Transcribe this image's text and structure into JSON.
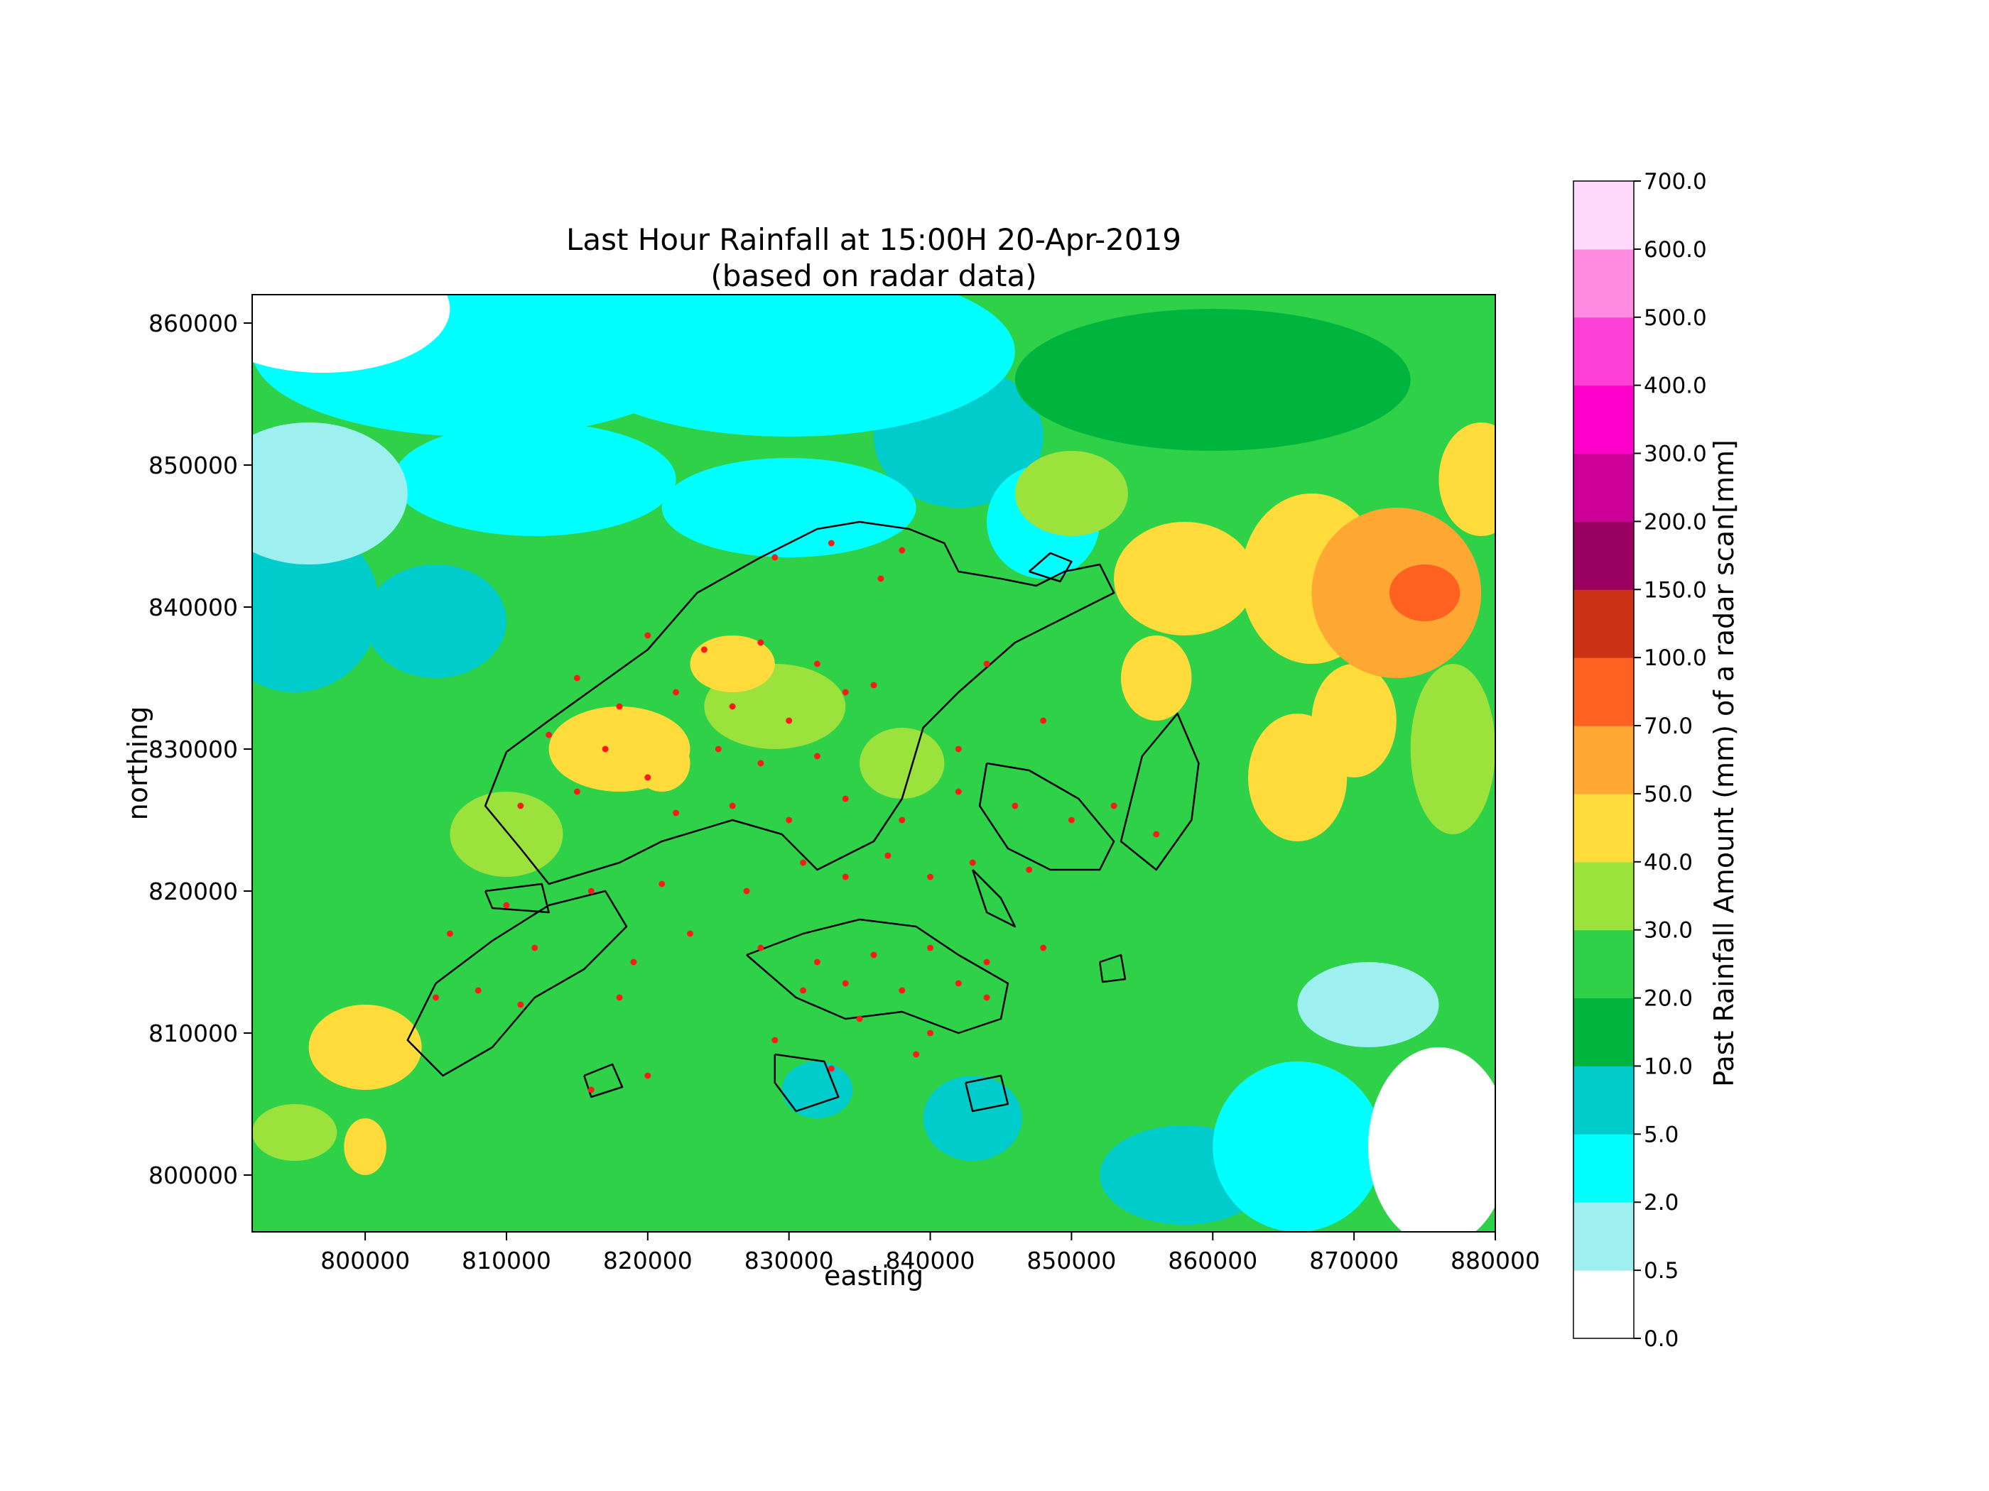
{
  "figure": {
    "title_line1": "Last Hour Rainfall at 15:00H 20-Apr-2019",
    "title_line2": "(based on radar data)",
    "xlabel": "easting",
    "ylabel": "northing",
    "colorbar_label": "Past Rainfall Amount (mm) of a radar scan[mm]"
  },
  "chart_data": {
    "type": "heatmap",
    "title": "Last Hour Rainfall at 15:00H 20-Apr-2019 (based on radar data)",
    "xlabel": "easting",
    "ylabel": "northing",
    "xlim": [
      792000,
      880000
    ],
    "ylim": [
      796000,
      862000
    ],
    "x_ticks": [
      800000,
      810000,
      820000,
      830000,
      840000,
      850000,
      860000,
      870000,
      880000
    ],
    "y_ticks": [
      800000,
      810000,
      820000,
      830000,
      840000,
      850000,
      860000
    ],
    "x_tick_labels": [
      "800000",
      "810000",
      "820000",
      "830000",
      "840000",
      "850000",
      "860000",
      "870000",
      "880000"
    ],
    "y_tick_labels": [
      "800000",
      "810000",
      "820000",
      "830000",
      "840000",
      "850000",
      "860000"
    ],
    "grid": false,
    "colorbar": {
      "label": "Past Rainfall Amount (mm) of a radar scan[mm]",
      "levels": [
        0.0,
        0.5,
        2.0,
        5.0,
        10.0,
        20.0,
        30.0,
        40.0,
        50.0,
        70.0,
        100.0,
        150.0,
        200.0,
        300.0,
        400.0,
        500.0,
        600.0,
        700.0
      ],
      "tick_labels": [
        "0.0",
        "0.5",
        "2.0",
        "5.0",
        "10.0",
        "20.0",
        "30.0",
        "40.0",
        "50.0",
        "70.0",
        "100.0",
        "150.0",
        "200.0",
        "300.0",
        "400.0",
        "500.0",
        "600.0",
        "700.0"
      ],
      "colors": [
        "#ffffff",
        "#9ef0f0",
        "#00ffff",
        "#00cccc",
        "#00b53e",
        "#2ed148",
        "#9be23c",
        "#ffdc3c",
        "#ffa733",
        "#ff6220",
        "#cc3314",
        "#9a0060",
        "#cc0099",
        "#ff00cc",
        "#ff40d6",
        "#ff8ce0",
        "#ffd9fa"
      ]
    },
    "rain_cells": [
      {
        "x": 797000,
        "y": 861000,
        "rx": 9000,
        "ry": 4500,
        "value": 0.3
      },
      {
        "x": 796000,
        "y": 848000,
        "rx": 7000,
        "ry": 5000,
        "value": 1.0
      },
      {
        "x": 808000,
        "y": 858000,
        "rx": 16000,
        "ry": 6000,
        "value": 3.0
      },
      {
        "x": 830000,
        "y": 858000,
        "rx": 16000,
        "ry": 6000,
        "value": 3.5
      },
      {
        "x": 812000,
        "y": 849000,
        "rx": 10000,
        "ry": 4000,
        "value": 4.0
      },
      {
        "x": 830000,
        "y": 847000,
        "rx": 9000,
        "ry": 3500,
        "value": 4.0
      },
      {
        "x": 842000,
        "y": 852000,
        "rx": 6000,
        "ry": 5000,
        "value": 6.0
      },
      {
        "x": 848000,
        "y": 846000,
        "rx": 4000,
        "ry": 4000,
        "value": 4.0
      },
      {
        "x": 795000,
        "y": 840000,
        "rx": 6000,
        "ry": 6000,
        "value": 6.0
      },
      {
        "x": 805000,
        "y": 839000,
        "rx": 5000,
        "ry": 4000,
        "value": 9.0
      },
      {
        "x": 876000,
        "y": 802000,
        "rx": 5000,
        "ry": 7000,
        "value": 0.3
      },
      {
        "x": 871000,
        "y": 812000,
        "rx": 5000,
        "ry": 3000,
        "value": 1.5
      },
      {
        "x": 866000,
        "y": 802000,
        "rx": 6000,
        "ry": 6000,
        "value": 3.5
      },
      {
        "x": 858000,
        "y": 800000,
        "rx": 6000,
        "ry": 3500,
        "value": 7.0
      },
      {
        "x": 843000,
        "y": 804000,
        "rx": 3500,
        "ry": 3000,
        "value": 7.0
      },
      {
        "x": 832000,
        "y": 806000,
        "rx": 2500,
        "ry": 2000,
        "value": 8.0
      },
      {
        "x": 860000,
        "y": 856000,
        "rx": 14000,
        "ry": 5000,
        "value": 15.0
      },
      {
        "x": 858000,
        "y": 842000,
        "rx": 5000,
        "ry": 4000,
        "value": 45.0
      },
      {
        "x": 867000,
        "y": 842000,
        "rx": 5000,
        "ry": 6000,
        "value": 42.0
      },
      {
        "x": 873000,
        "y": 841000,
        "rx": 6000,
        "ry": 6000,
        "value": 55.0
      },
      {
        "x": 875000,
        "y": 841000,
        "rx": 2500,
        "ry": 2000,
        "value": 75.0
      },
      {
        "x": 879000,
        "y": 849000,
        "rx": 3000,
        "ry": 4000,
        "value": 48.0
      },
      {
        "x": 866000,
        "y": 828000,
        "rx": 3500,
        "ry": 4500,
        "value": 42.0
      },
      {
        "x": 870000,
        "y": 832000,
        "rx": 3000,
        "ry": 4000,
        "value": 45.0
      },
      {
        "x": 856000,
        "y": 835000,
        "rx": 2500,
        "ry": 3000,
        "value": 42.0
      },
      {
        "x": 877000,
        "y": 830000,
        "rx": 3000,
        "ry": 6000,
        "value": 33.0
      },
      {
        "x": 850000,
        "y": 848000,
        "rx": 4000,
        "ry": 3000,
        "value": 32.0
      },
      {
        "x": 818000,
        "y": 830000,
        "rx": 5000,
        "ry": 3000,
        "value": 42.0
      },
      {
        "x": 821000,
        "y": 829000,
        "rx": 2000,
        "ry": 2000,
        "value": 48.0
      },
      {
        "x": 829000,
        "y": 833000,
        "rx": 5000,
        "ry": 3000,
        "value": 38.0
      },
      {
        "x": 826000,
        "y": 836000,
        "rx": 3000,
        "ry": 2000,
        "value": 40.0
      },
      {
        "x": 838000,
        "y": 829000,
        "rx": 3000,
        "ry": 2500,
        "value": 34.0
      },
      {
        "x": 810000,
        "y": 824000,
        "rx": 4000,
        "ry": 3000,
        "value": 32.0
      },
      {
        "x": 800000,
        "y": 809000,
        "rx": 4000,
        "ry": 3000,
        "value": 42.0
      },
      {
        "x": 800000,
        "y": 802000,
        "rx": 1500,
        "ry": 2000,
        "value": 40.0
      },
      {
        "x": 795000,
        "y": 803000,
        "rx": 3000,
        "ry": 2000,
        "value": 32.0
      }
    ],
    "rain_gauges": [
      [
        833000,
        844500
      ],
      [
        836500,
        842000
      ],
      [
        829000,
        843500
      ],
      [
        838000,
        844000
      ],
      [
        820000,
        838000
      ],
      [
        824000,
        837000
      ],
      [
        828000,
        837500
      ],
      [
        832000,
        836000
      ],
      [
        815000,
        835000
      ],
      [
        818000,
        833000
      ],
      [
        822000,
        834000
      ],
      [
        826000,
        833000
      ],
      [
        830000,
        832000
      ],
      [
        834000,
        834000
      ],
      [
        813000,
        831000
      ],
      [
        817000,
        830000
      ],
      [
        820000,
        828000
      ],
      [
        825000,
        830000
      ],
      [
        828000,
        829000
      ],
      [
        832000,
        829500
      ],
      [
        811000,
        826000
      ],
      [
        815000,
        827000
      ],
      [
        822000,
        825500
      ],
      [
        826000,
        826000
      ],
      [
        830000,
        825000
      ],
      [
        834000,
        826500
      ],
      [
        838000,
        825000
      ],
      [
        842000,
        827000
      ],
      [
        846000,
        826000
      ],
      [
        850000,
        825000
      ],
      [
        853000,
        826000
      ],
      [
        856000,
        824000
      ],
      [
        831000,
        822000
      ],
      [
        834000,
        821000
      ],
      [
        837000,
        822500
      ],
      [
        840000,
        821000
      ],
      [
        843000,
        822000
      ],
      [
        847000,
        821500
      ],
      [
        827000,
        820000
      ],
      [
        821000,
        820500
      ],
      [
        816000,
        820000
      ],
      [
        810000,
        819000
      ],
      [
        806000,
        817000
      ],
      [
        812000,
        816000
      ],
      [
        819000,
        815000
      ],
      [
        823000,
        817000
      ],
      [
        828000,
        816000
      ],
      [
        832000,
        815000
      ],
      [
        836000,
        815500
      ],
      [
        840000,
        816000
      ],
      [
        844000,
        815000
      ],
      [
        848000,
        816000
      ],
      [
        831000,
        813000
      ],
      [
        834000,
        813500
      ],
      [
        838000,
        813000
      ],
      [
        842000,
        813500
      ],
      [
        844000,
        812500
      ],
      [
        818000,
        812500
      ],
      [
        811000,
        812000
      ],
      [
        805000,
        812500
      ],
      [
        808000,
        813000
      ],
      [
        835000,
        811000
      ],
      [
        840000,
        810000
      ],
      [
        829000,
        809500
      ],
      [
        839000,
        808500
      ],
      [
        816000,
        806000
      ],
      [
        820000,
        807000
      ],
      [
        833000,
        807500
      ],
      [
        842000,
        830000
      ],
      [
        844000,
        836000
      ],
      [
        836000,
        834500
      ],
      [
        848000,
        832000
      ]
    ],
    "coastlines": [
      [
        [
          810000,
          829800
        ],
        [
          813000,
          832000
        ],
        [
          816500,
          834500
        ],
        [
          820000,
          837000
        ],
        [
          823500,
          841000
        ],
        [
          828000,
          843500
        ],
        [
          832000,
          845500
        ],
        [
          835000,
          846000
        ],
        [
          838500,
          845500
        ],
        [
          841000,
          844500
        ],
        [
          842000,
          842500
        ],
        [
          845000,
          842000
        ],
        [
          847500,
          841500
        ],
        [
          849500,
          842500
        ],
        [
          852000,
          843000
        ],
        [
          853000,
          841000
        ],
        [
          850000,
          839500
        ],
        [
          846000,
          837500
        ],
        [
          842000,
          834000
        ],
        [
          839500,
          831500
        ],
        [
          838000,
          826500
        ],
        [
          836000,
          823500
        ],
        [
          832000,
          821500
        ],
        [
          829500,
          824000
        ],
        [
          826000,
          825000
        ],
        [
          821000,
          823500
        ],
        [
          818000,
          822000
        ],
        [
          813000,
          820500
        ],
        [
          811000,
          823000
        ],
        [
          808500,
          826000
        ],
        [
          810000,
          829800
        ]
      ],
      [
        [
          847000,
          842500
        ],
        [
          848500,
          843800
        ],
        [
          850000,
          843200
        ],
        [
          849200,
          841800
        ],
        [
          847000,
          842500
        ]
      ],
      [
        [
          844000,
          829000
        ],
        [
          847000,
          828500
        ],
        [
          850500,
          826500
        ],
        [
          853000,
          823500
        ],
        [
          852000,
          821500
        ],
        [
          848500,
          821500
        ],
        [
          845500,
          823000
        ],
        [
          843500,
          826000
        ],
        [
          844000,
          829000
        ]
      ],
      [
        [
          855000,
          829500
        ],
        [
          857500,
          832500
        ],
        [
          859000,
          829000
        ],
        [
          858500,
          825000
        ],
        [
          856000,
          821500
        ],
        [
          853500,
          823500
        ],
        [
          855000,
          829500
        ]
      ],
      [
        [
          827000,
          815500
        ],
        [
          831000,
          817000
        ],
        [
          835000,
          818000
        ],
        [
          839000,
          817500
        ],
        [
          842000,
          815500
        ],
        [
          845500,
          813500
        ],
        [
          845000,
          811000
        ],
        [
          842000,
          810000
        ],
        [
          838000,
          811500
        ],
        [
          834000,
          811000
        ],
        [
          830500,
          812500
        ],
        [
          827000,
          815500
        ]
      ],
      [
        [
          805000,
          813500
        ],
        [
          809000,
          816500
        ],
        [
          813000,
          819000
        ],
        [
          817000,
          820000
        ],
        [
          818500,
          817500
        ],
        [
          815500,
          814500
        ],
        [
          812000,
          812500
        ],
        [
          809000,
          809000
        ],
        [
          805500,
          807000
        ],
        [
          803000,
          809500
        ],
        [
          805000,
          813500
        ]
      ],
      [
        [
          808500,
          820000
        ],
        [
          812500,
          820500
        ],
        [
          813000,
          818500
        ],
        [
          809000,
          818800
        ],
        [
          808500,
          820000
        ]
      ],
      [
        [
          829000,
          808500
        ],
        [
          832500,
          808000
        ],
        [
          833500,
          805500
        ],
        [
          830500,
          804500
        ],
        [
          829000,
          806500
        ],
        [
          829000,
          808500
        ]
      ],
      [
        [
          815500,
          807000
        ],
        [
          817500,
          807800
        ],
        [
          818200,
          806200
        ],
        [
          816000,
          805500
        ],
        [
          815500,
          807000
        ]
      ],
      [
        [
          842500,
          806500
        ],
        [
          845000,
          807000
        ],
        [
          845500,
          805000
        ],
        [
          843000,
          804500
        ],
        [
          842500,
          806500
        ]
      ],
      [
        [
          852000,
          815000
        ],
        [
          853500,
          815500
        ],
        [
          853800,
          813800
        ],
        [
          852200,
          813600
        ],
        [
          852000,
          815000
        ]
      ],
      [
        [
          843000,
          821500
        ],
        [
          845000,
          819500
        ],
        [
          846000,
          817500
        ],
        [
          844000,
          818500
        ],
        [
          843000,
          821500
        ]
      ]
    ]
  }
}
